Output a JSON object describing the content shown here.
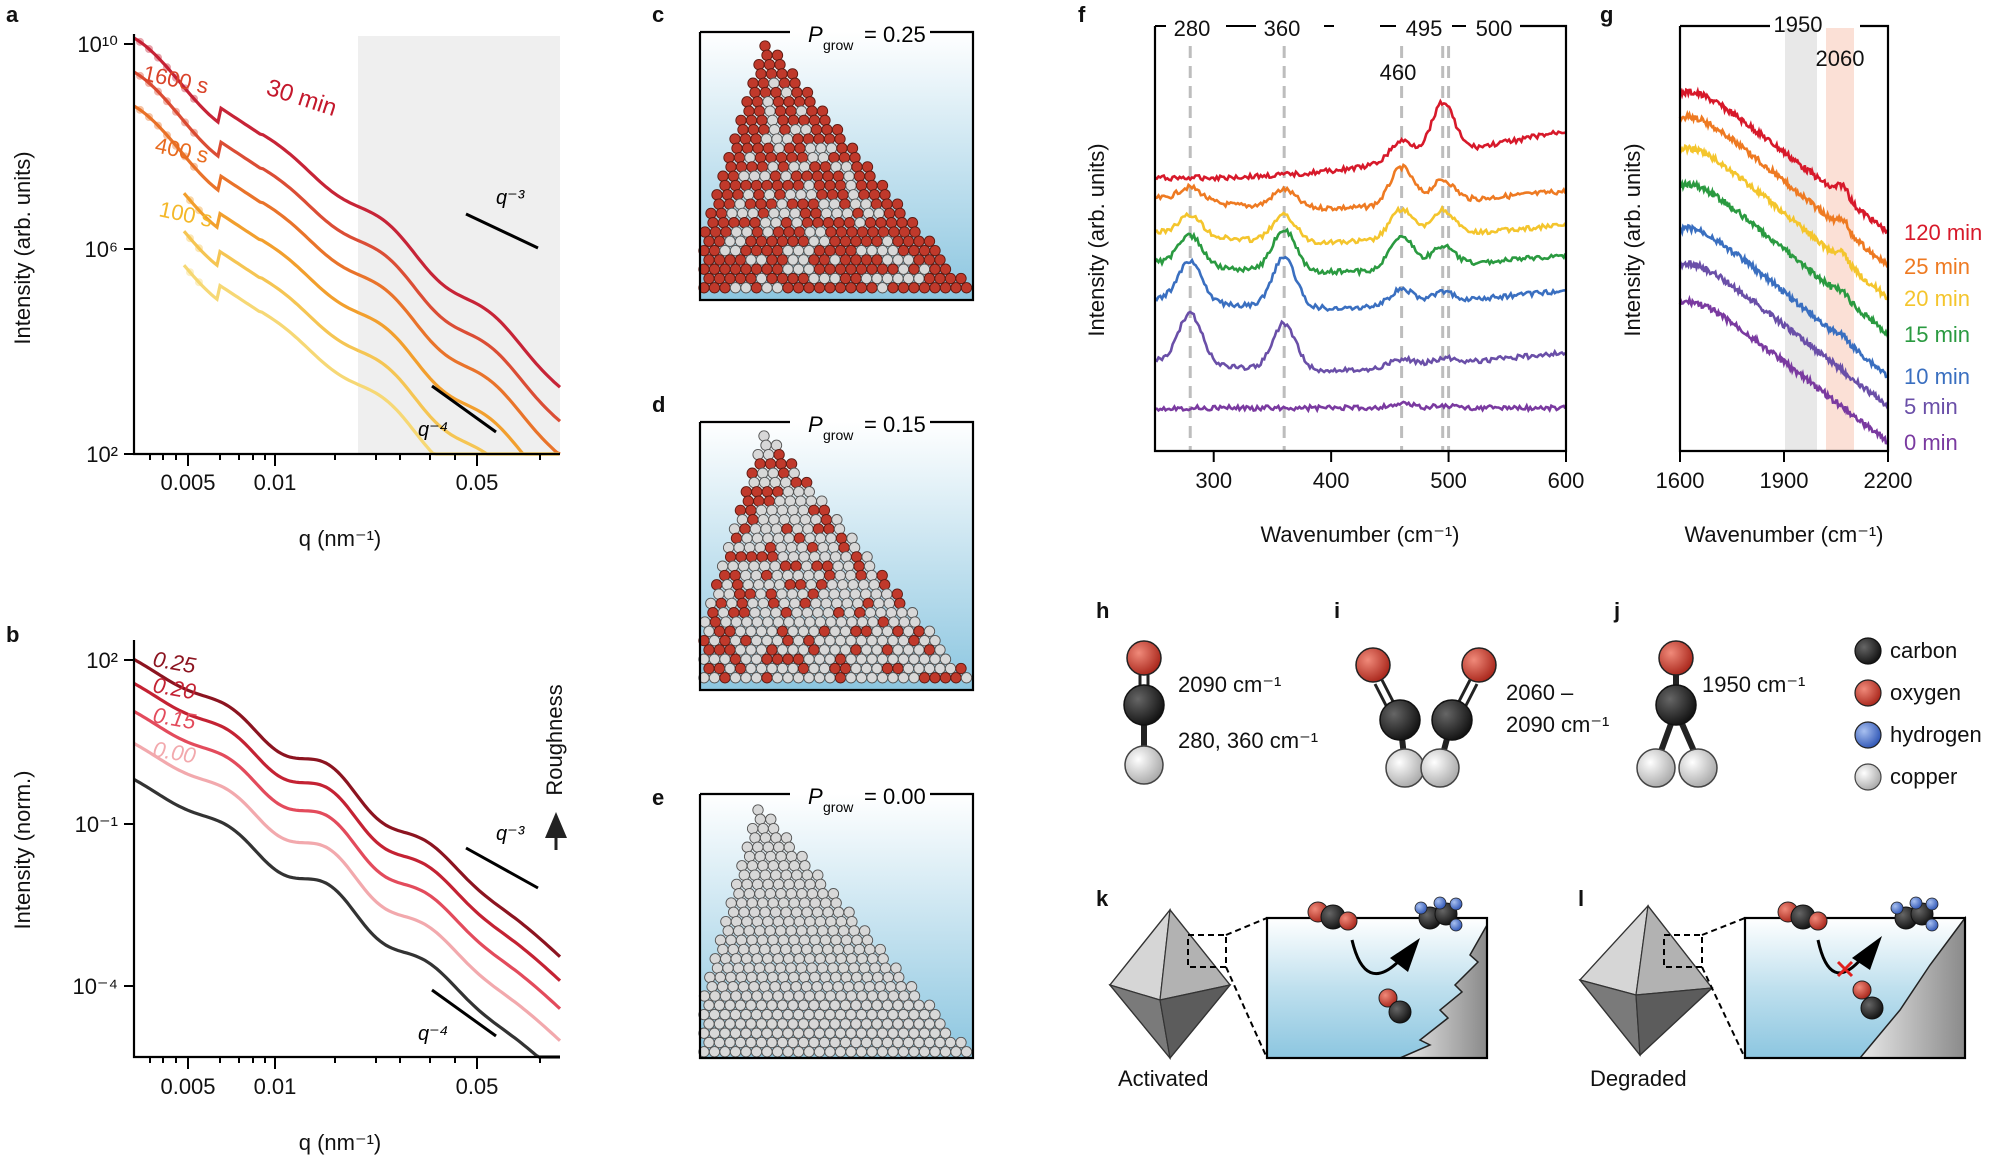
{
  "figure": {
    "panel_labels": {
      "a": "a",
      "b": "b",
      "c": "c",
      "d": "d",
      "e": "e",
      "f": "f",
      "g": "g",
      "h": "h",
      "i": "i",
      "j": "j",
      "k": "k",
      "l": "l"
    }
  },
  "panel_a": {
    "ylabel": "Intensity (arb. units)",
    "xlabel": "q (nm⁻¹)",
    "yticks": [
      "10¹⁰",
      "10⁶",
      "10²"
    ],
    "xticks": [
      "0.005",
      "0.01",
      "0.05"
    ],
    "series_labels": [
      "30 min",
      "1600 s",
      "400 s",
      "100 s"
    ],
    "slope_labels": [
      "q⁻³",
      "q⁻⁴"
    ],
    "colors": [
      "#c4182c",
      "#d9432a",
      "#e86b1f",
      "#f19a22",
      "#f4c24a",
      "#f6d66e"
    ]
  },
  "panel_b": {
    "ylabel": "Intensity (norm.)",
    "xlabel": "q (nm⁻¹)",
    "yticks": [
      "10²",
      "10⁻¹",
      "10⁻⁴"
    ],
    "xticks": [
      "0.005",
      "0.01",
      "0.05"
    ],
    "series_labels": [
      "0.25",
      "0.20",
      "0.15",
      "0.00"
    ],
    "arrow_label": "Roughness",
    "slope_labels": [
      "q⁻³",
      "q⁻⁴"
    ],
    "colors": [
      "#8c1420",
      "#c42233",
      "#e34b5c",
      "#f2a9ad",
      "#333333"
    ]
  },
  "panel_c": {
    "title": "P",
    "sub": "grow",
    "value": "= 0.25"
  },
  "panel_d": {
    "title": "P",
    "sub": "grow",
    "value": "= 0.15"
  },
  "panel_e": {
    "title": "P",
    "sub": "grow",
    "value": "= 0.00"
  },
  "chart_data": [
    {
      "type": "line",
      "panel": "f",
      "xlabel": "Wavenumber (cm⁻¹)",
      "ylabel": "Intensity (arb. units)",
      "xlim": [
        250,
        600
      ],
      "xticks": [
        "300",
        "400",
        "500",
        "600"
      ],
      "markers": [
        "280",
        "360",
        "460",
        "495",
        "500"
      ],
      "series": [
        {
          "name": "120 min",
          "color": "#d7192a"
        },
        {
          "name": "25 min",
          "color": "#ee7a22"
        },
        {
          "name": "20 min",
          "color": "#f4c52d"
        },
        {
          "name": "15 min",
          "color": "#2a9a40"
        },
        {
          "name": "10 min",
          "color": "#3a6fc0"
        },
        {
          "name": "5 min",
          "color": "#6a4fa8"
        },
        {
          "name": "0 min",
          "color": "#7a3aa0"
        }
      ]
    },
    {
      "type": "line",
      "panel": "g",
      "xlabel": "Wavenumber (cm⁻¹)",
      "ylabel": "Intensity (arb. units)",
      "xlim": [
        1600,
        2200
      ],
      "xticks": [
        "1600",
        "1900",
        "2200"
      ],
      "markers": [
        "1950",
        "2060"
      ],
      "series": [
        {
          "name": "120 min",
          "color": "#d7192a"
        },
        {
          "name": "25 min",
          "color": "#ee7a22"
        },
        {
          "name": "20 min",
          "color": "#f4c52d"
        },
        {
          "name": "15 min",
          "color": "#2a9a40"
        },
        {
          "name": "10 min",
          "color": "#3a6fc0"
        },
        {
          "name": "5 min",
          "color": "#6a4fa8"
        },
        {
          "name": "0 min",
          "color": "#7a3aa0"
        }
      ]
    }
  ],
  "panel_h": {
    "line1": "2090 cm⁻¹",
    "line2": "280, 360 cm⁻¹"
  },
  "panel_i": {
    "line1": "2060 –",
    "line2": "2090 cm⁻¹"
  },
  "panel_j": {
    "line1": "1950  cm⁻¹"
  },
  "legend_atoms": [
    {
      "label": "carbon",
      "color": "#222222"
    },
    {
      "label": "oxygen",
      "color": "#c0392b"
    },
    {
      "label": "hydrogen",
      "color": "#4a6fc7"
    },
    {
      "label": "copper",
      "color": "#cfcfcf"
    }
  ],
  "panel_k": {
    "caption": "Activated"
  },
  "panel_l": {
    "caption": "Degraded"
  }
}
